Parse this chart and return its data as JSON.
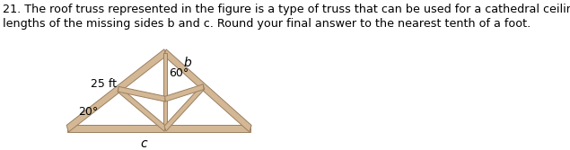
{
  "text_line1": "21. The roof truss represented in the figure is a type of truss that can be used for a cathedral ceiling in a house. Find the",
  "text_line2": "lengths of the missing sides b and c. Round your final answer to the nearest tenth of a foot.",
  "text_fontsize": 9.2,
  "bg_color": "#ffffff",
  "truss_fill": "#d4b896",
  "truss_edge": "#9a8060",
  "truss_lw": 0.7,
  "label_25ft": "25 ft",
  "label_60deg": "60°",
  "label_b": "b",
  "label_20deg": "20°",
  "label_c": "c",
  "fig_width": 6.35,
  "fig_height": 1.67,
  "dpi": 100
}
